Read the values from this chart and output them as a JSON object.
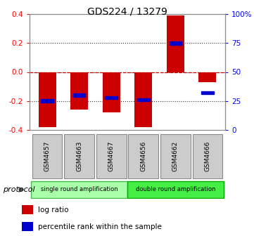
{
  "title": "GDS224 / 13279",
  "samples": [
    "GSM4657",
    "GSM4663",
    "GSM4667",
    "GSM4656",
    "GSM4662",
    "GSM4666"
  ],
  "log_ratios": [
    -0.38,
    -0.26,
    -0.28,
    -0.38,
    0.39,
    -0.07
  ],
  "percentile_ranks": [
    25,
    30,
    28,
    26,
    75,
    32
  ],
  "ylim": [
    -0.4,
    0.4
  ],
  "yticks": [
    -0.4,
    -0.2,
    0.0,
    0.2,
    0.4
  ],
  "right_yticks": [
    0,
    25,
    50,
    75,
    100
  ],
  "right_yticklabels": [
    "0",
    "25",
    "50",
    "75",
    "100%"
  ],
  "bar_color": "#cc0000",
  "percentile_color": "#0000cc",
  "hline_color": "#cc0000",
  "dotted_color": "#333333",
  "protocol_groups": [
    {
      "label": "single round amplification",
      "color": "#aaffaa",
      "border": "#44bb44"
    },
    {
      "label": "double round amplification",
      "color": "#44ee44",
      "border": "#00aa00"
    }
  ],
  "legend_entries": [
    {
      "label": "log ratio",
      "color": "#cc0000"
    },
    {
      "label": "percentile rank within the sample",
      "color": "#0000cc"
    }
  ],
  "protocol_label": "protocol",
  "background_color": "#ffffff",
  "plot_bg": "#ffffff",
  "bar_width": 0.55,
  "sample_box_color": "#cccccc",
  "sample_box_edge": "#888888"
}
